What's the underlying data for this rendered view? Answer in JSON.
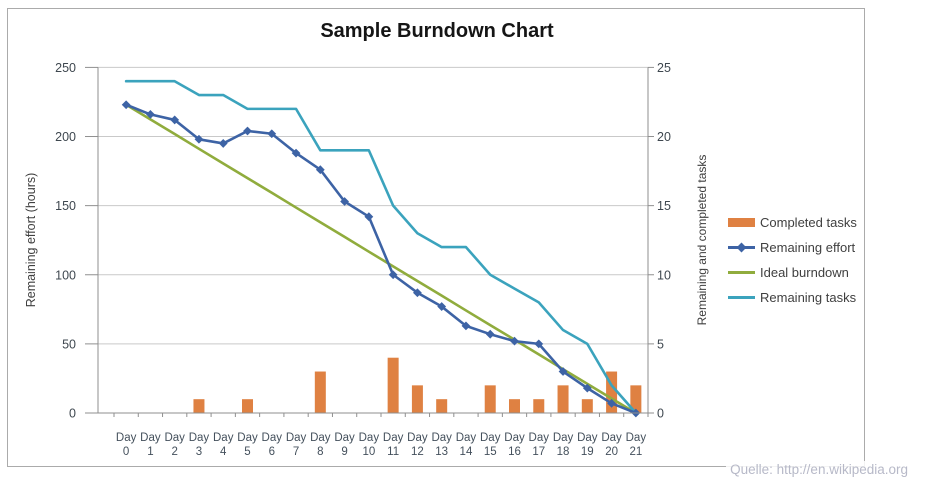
{
  "watermark": {
    "text": "Quelle: http://en.wikipedia.org"
  },
  "colors": {
    "completed_tasks": "#df8142",
    "remaining_effort": "#3d63a5",
    "ideal_burndown": "#90ac3d",
    "remaining_tasks": "#3ba3bd",
    "gridline": "#c9c9c9",
    "axis_line": "#8f8f8f",
    "axis_text": "#3e474f",
    "category_text": "#44505c"
  },
  "chart_data": {
    "type": "combo",
    "title": "Sample Burndown Chart",
    "categories": [
      "Day 0",
      "Day 1",
      "Day 2",
      "Day 3",
      "Day 4",
      "Day 5",
      "Day 6",
      "Day 7",
      "Day 8",
      "Day 9",
      "Day 10",
      "Day 11",
      "Day 12",
      "Day 13",
      "Day 14",
      "Day 15",
      "Day 16",
      "Day 17",
      "Day 18",
      "Day 19",
      "Day 20",
      "Day 21"
    ],
    "left_axis": {
      "label": "Remaining effort (hours)",
      "min": 0,
      "max": 250,
      "step": 50
    },
    "right_axis": {
      "label": "Remaining and  completed tasks",
      "min": 0,
      "max": 25,
      "step": 5
    },
    "grid": true,
    "legend_position": "right",
    "series": [
      {
        "name": "Completed tasks",
        "type": "bar",
        "axis": "right",
        "color": "#df8142",
        "values": [
          0,
          0,
          0,
          1,
          0,
          1,
          0,
          0,
          3,
          0,
          0,
          4,
          2,
          1,
          0,
          2,
          1,
          1,
          2,
          1,
          3,
          2
        ]
      },
      {
        "name": "Remaining effort",
        "type": "line",
        "axis": "left",
        "marker": "diamond",
        "color": "#3d63a5",
        "values": [
          223,
          216,
          212,
          198,
          195,
          204,
          202,
          188,
          176,
          153,
          142,
          100,
          87,
          77,
          63,
          57,
          52,
          50,
          30,
          18,
          7,
          0
        ]
      },
      {
        "name": "Ideal burndown",
        "type": "line",
        "axis": "left",
        "color": "#90ac3d",
        "values": [
          223,
          212.4,
          201.8,
          191.1,
          180.5,
          169.9,
          159.3,
          148.6,
          138.0,
          127.4,
          116.7,
          106.1,
          95.5,
          84.9,
          74.2,
          63.6,
          53.0,
          42.4,
          31.7,
          21.1,
          10.5,
          0
        ]
      },
      {
        "name": "Remaining tasks",
        "type": "line",
        "axis": "right",
        "color": "#3ba3bd",
        "values": [
          24,
          24,
          24,
          23,
          23,
          22,
          22,
          22,
          19,
          19,
          19,
          15,
          13,
          12,
          12,
          10,
          9,
          8,
          6,
          5,
          2,
          0
        ]
      }
    ]
  }
}
